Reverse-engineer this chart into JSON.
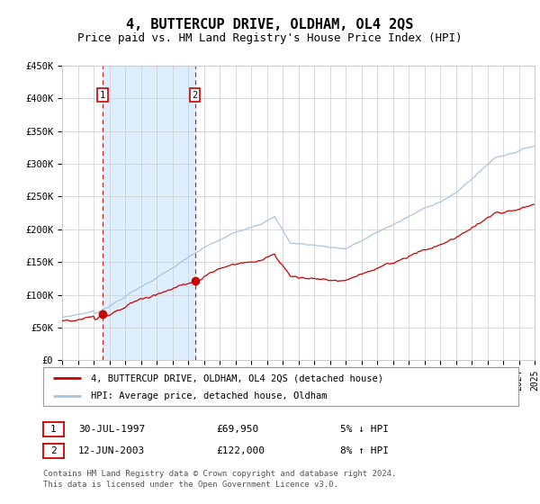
{
  "title": "4, BUTTERCUP DRIVE, OLDHAM, OL4 2QS",
  "subtitle": "Price paid vs. HM Land Registry's House Price Index (HPI)",
  "title_fontsize": 11,
  "subtitle_fontsize": 9,
  "y_ticks": [
    0,
    50000,
    100000,
    150000,
    200000,
    250000,
    300000,
    350000,
    400000,
    450000
  ],
  "y_tick_labels": [
    "£0",
    "£50K",
    "£100K",
    "£150K",
    "£200K",
    "£250K",
    "£300K",
    "£350K",
    "£400K",
    "£450K"
  ],
  "x_start_year": 1995,
  "x_end_year": 2025,
  "sale1_date": 1997.57,
  "sale1_price": 69950,
  "sale1_label": "1",
  "sale2_date": 2003.44,
  "sale2_price": 122000,
  "sale2_label": "2",
  "hpi_line_color": "#a8c4e0",
  "price_line_color": "#cc0000",
  "marker_color": "#cc0000",
  "shade_color": "#ddeeff",
  "grid_color": "#cccccc",
  "background_color": "#ffffff",
  "legend_entry1": "4, BUTTERCUP DRIVE, OLDHAM, OL4 2QS (detached house)",
  "legend_entry2": "HPI: Average price, detached house, Oldham",
  "table_row1_num": "1",
  "table_row1_date": "30-JUL-1997",
  "table_row1_price": "£69,950",
  "table_row1_hpi": "5% ↓ HPI",
  "table_row2_num": "2",
  "table_row2_date": "12-JUN-2003",
  "table_row2_price": "£122,000",
  "table_row2_hpi": "8% ↑ HPI",
  "footer": "Contains HM Land Registry data © Crown copyright and database right 2024.\nThis data is licensed under the Open Government Licence v3.0."
}
